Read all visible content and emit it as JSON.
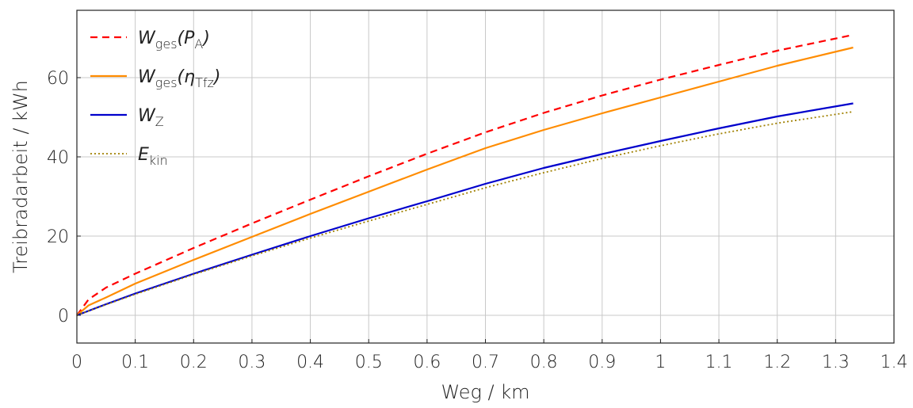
{
  "chart_data": {
    "type": "line",
    "xlabel": "Weg / km",
    "ylabel": "Treibradarbeit / kWh",
    "xlim": [
      0,
      1.4
    ],
    "ylim": [
      -7,
      77
    ],
    "xticks": [
      "0",
      "0.1",
      "0.2",
      "0.3",
      "0.4",
      "0.5",
      "0.6",
      "0.7",
      "0.8",
      "0.9",
      "1",
      "1.1",
      "1.2",
      "1.3",
      "1.4"
    ],
    "yticks": [
      "0",
      "20",
      "40",
      "60"
    ],
    "grid": true,
    "legend_position": "top-left",
    "series": [
      {
        "name": "W_ges(P_A)",
        "legend": {
          "main": "W",
          "sub": "ges",
          "rest": "(P",
          "rest_sub": "A",
          "tail": ")"
        },
        "color": "#ff0000",
        "style": "dashed",
        "x": [
          0,
          0.02,
          0.05,
          0.1,
          0.2,
          0.3,
          0.4,
          0.5,
          0.6,
          0.7,
          0.8,
          0.9,
          1.0,
          1.1,
          1.2,
          1.33
        ],
        "y": [
          0,
          4,
          7,
          10.5,
          17,
          23.2,
          29.2,
          35.1,
          40.8,
          46.2,
          51.1,
          55.5,
          59.5,
          63.2,
          66.8,
          70.8
        ]
      },
      {
        "name": "W_ges(eta_Tfz)",
        "legend": {
          "main": "W",
          "sub": "ges",
          "rest": "(η",
          "rest_sub": "Tfz",
          "tail": ")"
        },
        "color": "#ff8c00",
        "style": "solid",
        "x": [
          0,
          0.02,
          0.05,
          0.1,
          0.2,
          0.3,
          0.4,
          0.5,
          0.6,
          0.7,
          0.8,
          0.9,
          1.0,
          1.1,
          1.2,
          1.33
        ],
        "y": [
          0,
          2.5,
          4.5,
          8,
          14,
          19.8,
          25.6,
          31.2,
          36.8,
          42.2,
          46.8,
          51,
          55,
          59,
          63,
          67.6
        ]
      },
      {
        "name": "W_Z",
        "legend": {
          "main": "W",
          "sub": "",
          "rest": "",
          "rest_sub": "Z",
          "tail": ""
        },
        "color": "#0000cc",
        "style": "solid",
        "x": [
          0,
          0.05,
          0.1,
          0.2,
          0.3,
          0.4,
          0.5,
          0.6,
          0.7,
          0.8,
          0.9,
          1.0,
          1.1,
          1.2,
          1.33
        ],
        "y": [
          0,
          2.8,
          5.5,
          10.5,
          15.3,
          20,
          24.5,
          28.8,
          33.2,
          37.2,
          40.7,
          44,
          47.2,
          50.2,
          53.5
        ]
      },
      {
        "name": "E_kin",
        "legend": {
          "main": "E",
          "sub": "kin",
          "rest": "",
          "rest_sub": "",
          "tail": ""
        },
        "color": "#a08000",
        "style": "dotted",
        "x": [
          0,
          0.05,
          0.1,
          0.2,
          0.3,
          0.4,
          0.5,
          0.6,
          0.7,
          0.8,
          0.9,
          1.0,
          1.1,
          1.2,
          1.33
        ],
        "y": [
          0,
          2.7,
          5.3,
          10.3,
          15,
          19.5,
          23.8,
          28,
          32.2,
          36,
          39.6,
          42.8,
          45.8,
          48.5,
          51.4
        ]
      }
    ]
  }
}
